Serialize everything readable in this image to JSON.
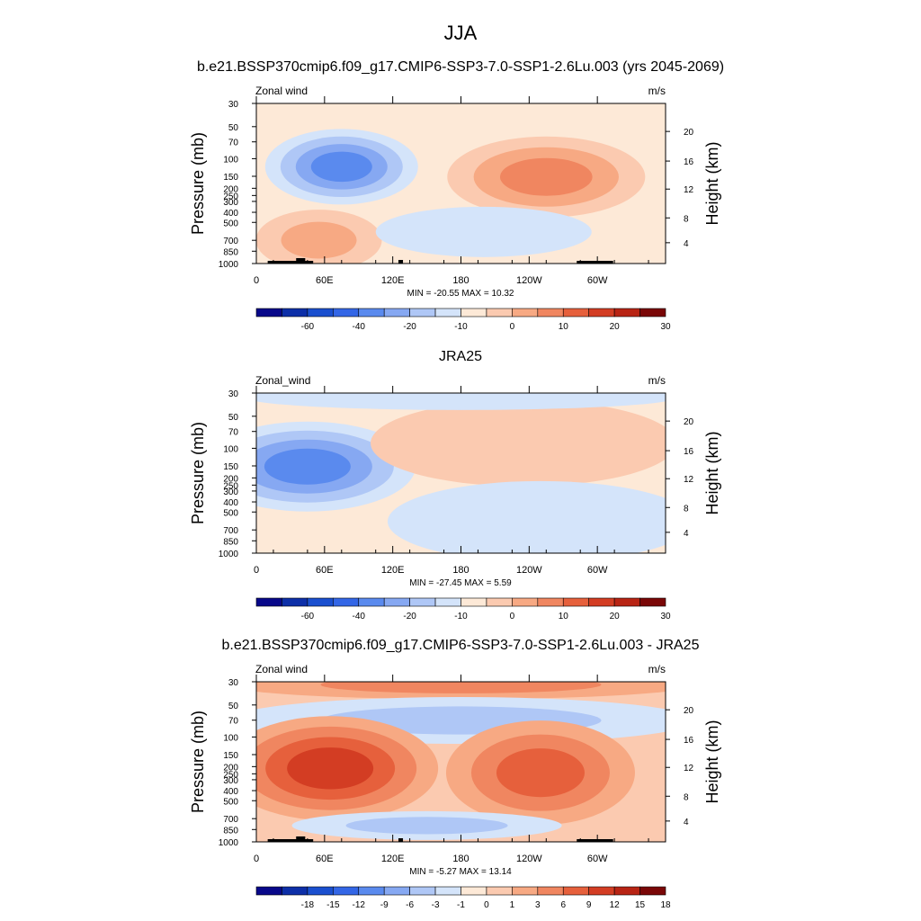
{
  "main_title": "JJA",
  "chart_data": [
    {
      "type": "heatmap",
      "title": "b.e21.BSSP370cmip6.f09_g17.CMIP6-SSP3-7.0-SSP1-2.6Lu.003 (yrs 2045-2069)",
      "left_label": "Zonal wind",
      "right_label": "m/s",
      "ylabel": "Pressure (mb)",
      "ylabel_right": "Height (km)",
      "x_ticks": [
        "0",
        "60E",
        "120E",
        "180",
        "120W",
        "60W"
      ],
      "y_ticks": [
        "30",
        "50",
        "70",
        "100",
        "150",
        "200",
        "250",
        "300",
        "400",
        "500",
        "700",
        "850",
        "1000"
      ],
      "y_right_ticks": [
        "20",
        "16",
        "12",
        "8",
        "4"
      ],
      "stats": "MIN = -20.55  MAX =  10.32",
      "colorbar_labels": [
        "-60",
        "-40",
        "-20",
        "-10",
        "0",
        "10",
        "20",
        "30"
      ],
      "colorbar_colors": [
        "#08088a",
        "#0d2fa8",
        "#1a4fcf",
        "#3366e6",
        "#5a8aee",
        "#86a8f2",
        "#afc7f6",
        "#d4e4fa",
        "#fde9d7",
        "#fbcab0",
        "#f7a983",
        "#f08660",
        "#e6603c",
        "#d33d23",
        "#b82414",
        "#7a0707"
      ],
      "range": [
        -20.55,
        10.32
      ],
      "has_topography": true,
      "features": [
        {
          "kind": "easterly jet core (negative)",
          "lon": 75,
          "pressure": 120,
          "value": -20.55
        },
        {
          "kind": "westerly maximum (positive)",
          "lon": 255,
          "pressure": 150,
          "value": 10.32
        },
        {
          "kind": "positive lower-troposphere region",
          "lon": 55,
          "pressure": 600,
          "value": 5
        }
      ]
    },
    {
      "type": "heatmap",
      "title": "JRA25",
      "left_label": "Zonal_wind",
      "right_label": "m/s",
      "ylabel": "Pressure (mb)",
      "ylabel_right": "Height (km)",
      "x_ticks": [
        "0",
        "60E",
        "120E",
        "180",
        "120W",
        "60W"
      ],
      "y_ticks": [
        "30",
        "50",
        "70",
        "100",
        "150",
        "200",
        "250",
        "300",
        "400",
        "500",
        "700",
        "850",
        "1000"
      ],
      "y_right_ticks": [
        "20",
        "16",
        "12",
        "8",
        "4"
      ],
      "stats": "MIN = -27.45  MAX =   5.59",
      "colorbar_labels": [
        "-60",
        "-40",
        "-20",
        "-10",
        "0",
        "10",
        "20",
        "30"
      ],
      "colorbar_colors": [
        "#08088a",
        "#0d2fa8",
        "#1a4fcf",
        "#3366e6",
        "#5a8aee",
        "#86a8f2",
        "#afc7f6",
        "#d4e4fa",
        "#fde9d7",
        "#fbcab0",
        "#f7a983",
        "#f08660",
        "#e6603c",
        "#d33d23",
        "#b82414",
        "#7a0707"
      ],
      "range": [
        -27.45,
        5.59
      ],
      "has_topography": false,
      "features": [
        {
          "kind": "easterly jet core (negative)",
          "lon": 70,
          "pressure": 150,
          "value": -27.45
        },
        {
          "kind": "westerly maximum (positive)",
          "lon": 295,
          "pressure": 150,
          "value": 5.59
        }
      ]
    },
    {
      "type": "heatmap",
      "title": "b.e21.BSSP370cmip6.f09_g17.CMIP6-SSP3-7.0-SSP1-2.6Lu.003 - JRA25",
      "left_label": "Zonal wind",
      "right_label": "m/s",
      "ylabel": "Pressure (mb)",
      "ylabel_right": "Height (km)",
      "x_ticks": [
        "0",
        "60E",
        "120E",
        "180",
        "120W",
        "60W"
      ],
      "y_ticks": [
        "30",
        "50",
        "70",
        "100",
        "150",
        "200",
        "250",
        "300",
        "400",
        "500",
        "700",
        "850",
        "1000"
      ],
      "y_right_ticks": [
        "20",
        "16",
        "12",
        "8",
        "4"
      ],
      "stats": "MIN = -5.27  MAX = 13.14",
      "colorbar_labels": [
        "-18",
        "-15",
        "-12",
        "-9",
        "-6",
        "-3",
        "-1",
        "0",
        "1",
        "3",
        "6",
        "9",
        "12",
        "15",
        "18"
      ],
      "colorbar_colors": [
        "#08088a",
        "#0d2fa8",
        "#1a4fcf",
        "#3366e6",
        "#5a8aee",
        "#86a8f2",
        "#afc7f6",
        "#d4e4fa",
        "#fde9d7",
        "#fbcab0",
        "#f7a983",
        "#f08660",
        "#e6603c",
        "#d33d23",
        "#b82414",
        "#7a0707"
      ],
      "range": [
        -5.27,
        13.14
      ],
      "has_topography": true,
      "features": [
        {
          "kind": "positive difference maximum",
          "lon": 60,
          "pressure": 200,
          "value": 13.14
        },
        {
          "kind": "positive difference secondary",
          "lon": 245,
          "pressure": 220,
          "value": 9
        },
        {
          "kind": "negative band (upper)",
          "lon": 180,
          "pressure": 70,
          "value": -5.27
        },
        {
          "kind": "positive top band",
          "lon": 180,
          "pressure": 30,
          "value": 5
        }
      ]
    }
  ]
}
